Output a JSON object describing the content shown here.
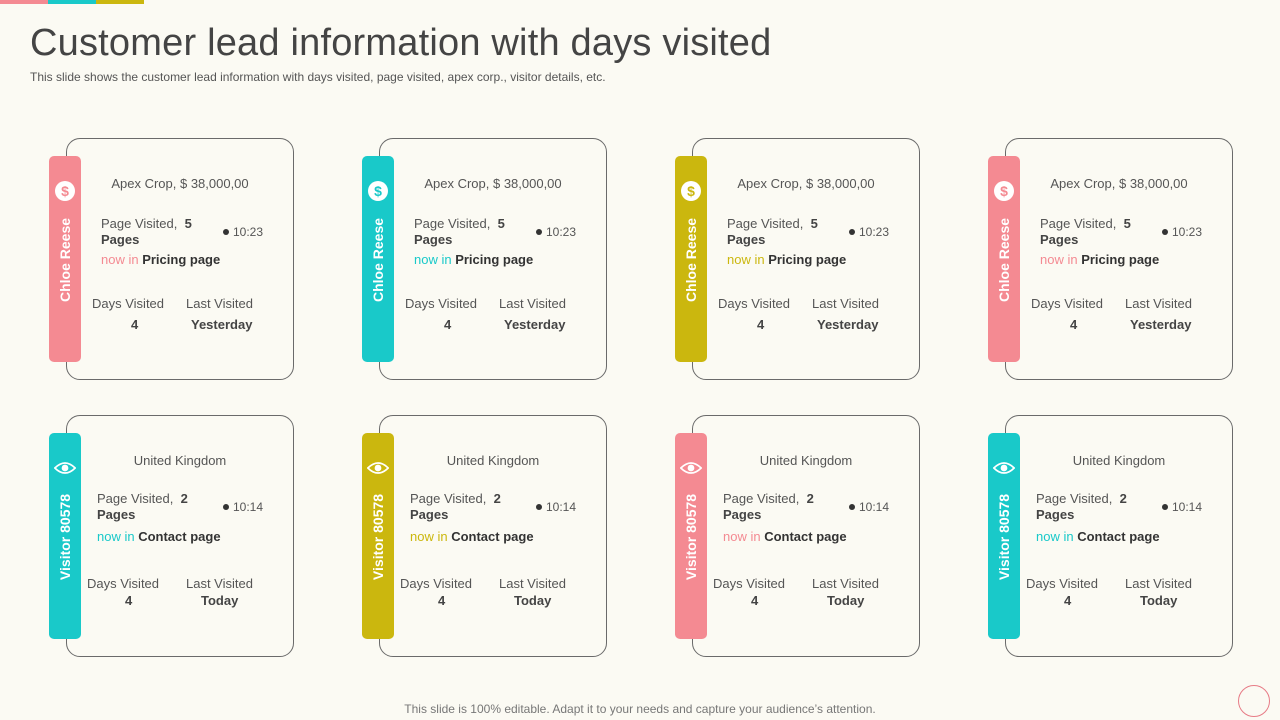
{
  "colors": {
    "pink": "#f48a92",
    "teal": "#19c9c9",
    "olive": "#cbb70e"
  },
  "title": "Customer lead information with days visited",
  "subtitle": "This slide shows the customer lead information with days visited, page visited, apex corp., visitor details, etc.",
  "footer": "This slide is 100% editable. Adapt it to your needs and capture your audience’s attention.",
  "leads": [
    {
      "tab_label": "Chloe Reese",
      "icon": "dollar-icon",
      "headline": "Apex Crop,  $ 38,000,00",
      "page_visited_label": "Page Visited,",
      "page_count": "5",
      "pages_word": "Pages",
      "time": "10:23",
      "now_in": "now in",
      "page_name": "Pricing page",
      "days_visited_label": "Days Visited",
      "days_visited": "4",
      "last_visited_label": "Last  Visited",
      "last_visited": "Yesterday",
      "accent": "#f48a92"
    },
    {
      "tab_label": "Chloe Reese",
      "icon": "dollar-icon",
      "headline": "Apex Crop,  $ 38,000,00",
      "page_visited_label": "Page Visited,",
      "page_count": "5",
      "pages_word": "Pages",
      "time": "10:23",
      "now_in": "now in",
      "page_name": "Pricing page",
      "days_visited_label": "Days Visited",
      "days_visited": "4",
      "last_visited_label": "Last  Visited",
      "last_visited": "Yesterday",
      "accent": "#19c9c9"
    },
    {
      "tab_label": "Chloe Reese",
      "icon": "dollar-icon",
      "headline": "Apex Crop,  $ 38,000,00",
      "page_visited_label": "Page Visited,",
      "page_count": "5",
      "pages_word": "Pages",
      "time": "10:23",
      "now_in": "now in",
      "page_name": "Pricing page",
      "days_visited_label": "Days Visited",
      "days_visited": "4",
      "last_visited_label": "Last  Visited",
      "last_visited": "Yesterday",
      "accent": "#cbb70e"
    },
    {
      "tab_label": "Chloe Reese",
      "icon": "dollar-icon",
      "headline": "Apex Crop,  $ 38,000,00",
      "page_visited_label": "Page Visited,",
      "page_count": "5",
      "pages_word": "Pages",
      "time": "10:23",
      "now_in": "now in",
      "page_name": "Pricing page",
      "days_visited_label": "Days Visited",
      "days_visited": "4",
      "last_visited_label": "Last  Visited",
      "last_visited": "Yesterday",
      "accent": "#f48a92"
    }
  ],
  "visitors": [
    {
      "tab_label": "Visitor 80578",
      "icon": "eye-icon",
      "headline": "United Kingdom",
      "page_visited_label": "Page Visited,",
      "page_count": "2",
      "pages_word": "Pages",
      "time": "10:14",
      "now_in": "now in",
      "page_name": "Contact page",
      "days_visited_label": "Days Visited",
      "days_visited": "4",
      "last_visited_label": "Last  Visited",
      "last_visited": "Today",
      "accent": "#19c9c9"
    },
    {
      "tab_label": "Visitor 80578",
      "icon": "eye-icon",
      "headline": "United Kingdom",
      "page_visited_label": "Page Visited,",
      "page_count": "2",
      "pages_word": "Pages",
      "time": "10:14",
      "now_in": "now in",
      "page_name": "Contact page",
      "days_visited_label": "Days Visited",
      "days_visited": "4",
      "last_visited_label": "Last  Visited",
      "last_visited": "Today",
      "accent": "#cbb70e"
    },
    {
      "tab_label": "Visitor 80578",
      "icon": "eye-icon",
      "headline": "United Kingdom",
      "page_visited_label": "Page Visited,",
      "page_count": "2",
      "pages_word": "Pages",
      "time": "10:14",
      "now_in": "now in",
      "page_name": "Contact page",
      "days_visited_label": "Days Visited",
      "days_visited": "4",
      "last_visited_label": "Last  Visited",
      "last_visited": "Today",
      "accent": "#f48a92"
    },
    {
      "tab_label": "Visitor 80578",
      "icon": "eye-icon",
      "headline": "United Kingdom",
      "page_visited_label": "Page Visited,",
      "page_count": "2",
      "pages_word": "Pages",
      "time": "10:14",
      "now_in": "now in",
      "page_name": "Contact page",
      "days_visited_label": "Days Visited",
      "days_visited": "4",
      "last_visited_label": "Last  Visited",
      "last_visited": "Today",
      "accent": "#19c9c9"
    }
  ]
}
